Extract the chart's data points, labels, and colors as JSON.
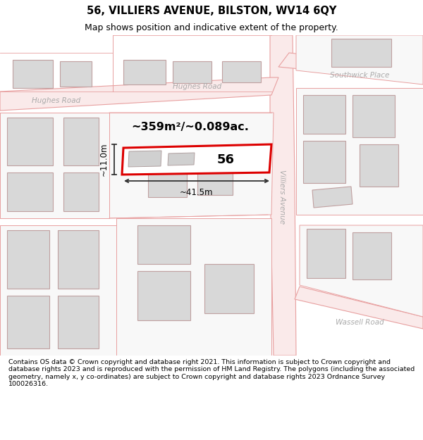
{
  "title": "56, VILLIERS AVENUE, BILSTON, WV14 6QY",
  "subtitle": "Map shows position and indicative extent of the property.",
  "footer": "Contains OS data © Crown copyright and database right 2021. This information is subject to Crown copyright and database rights 2023 and is reproduced with the permission of HM Land Registry. The polygons (including the associated geometry, namely x, y co-ordinates) are subject to Crown copyright and database rights 2023 Ordnance Survey 100026316.",
  "area_text": "~359m²/~0.089ac.",
  "property_label": "56",
  "dim_width": "~41.5m",
  "dim_height": "~11.0m",
  "title_fontsize": 10.5,
  "subtitle_fontsize": 9,
  "footer_fontsize": 6.8,
  "road_color": "#e8a0a0",
  "building_fill": "#d8d8d8",
  "building_stroke": "#c0a0a0",
  "highlight_color": "#dd0000",
  "road_label_color": "#aaaaaa",
  "bg_color": "#ffffff"
}
